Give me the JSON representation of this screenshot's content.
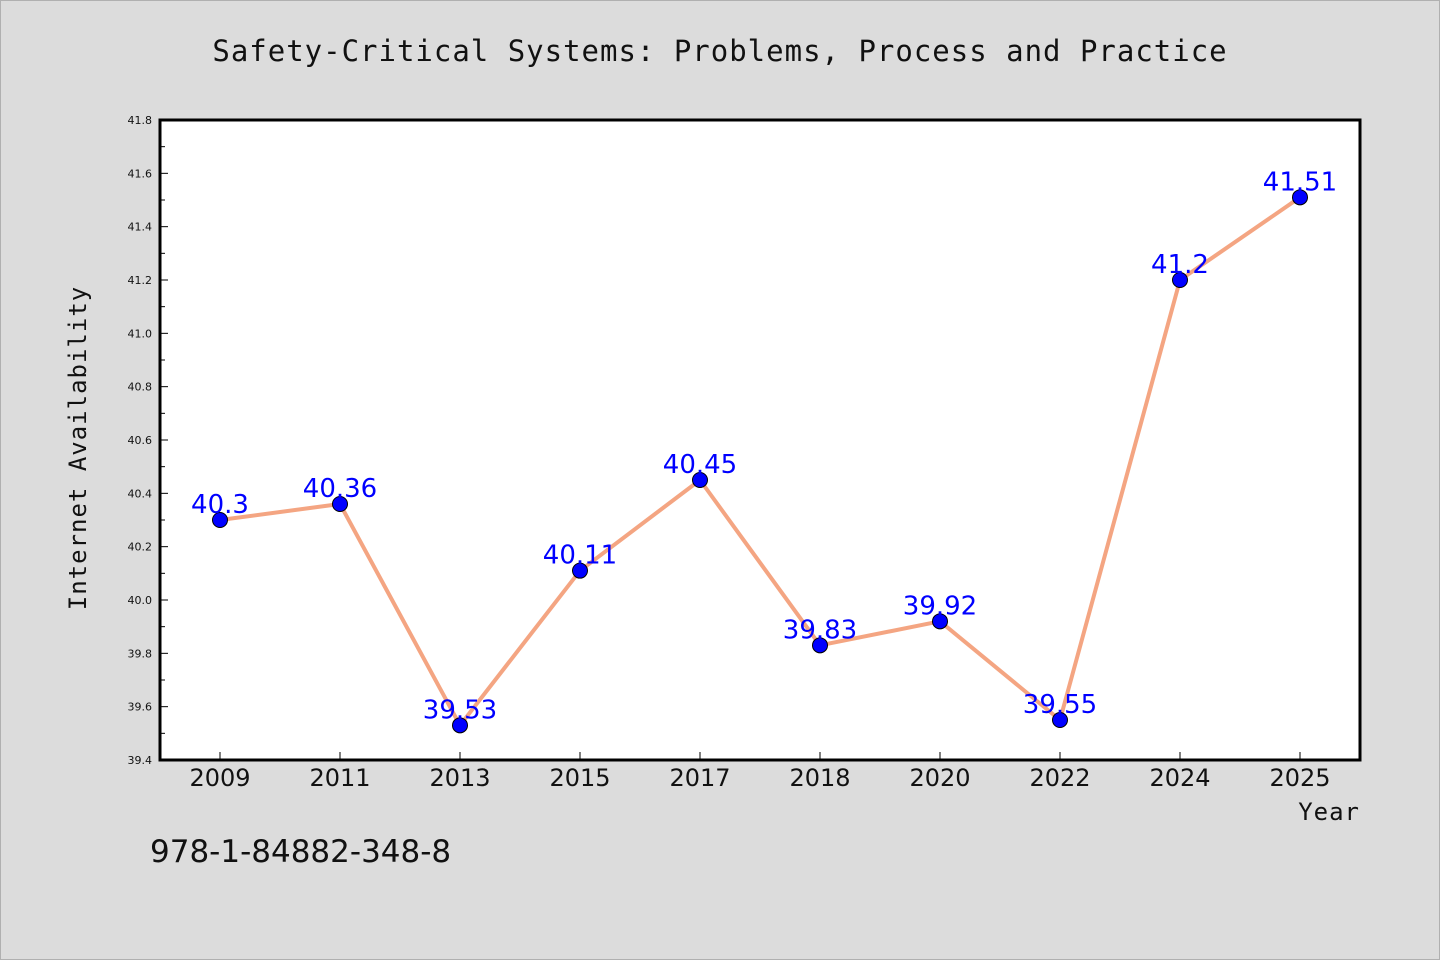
{
  "figure": {
    "isbn": "978-1-84882-348-8"
  },
  "chart_data": {
    "type": "line",
    "title": "Safety-Critical Systems: Problems, Process and Practice",
    "xlabel": "Year",
    "ylabel": "Internet Availability",
    "categories": [
      "2009",
      "2011",
      "2013",
      "2015",
      "2017",
      "2018",
      "2020",
      "2022",
      "2024",
      "2025"
    ],
    "series": [
      {
        "values": [
          40.3,
          40.36,
          39.53,
          40.11,
          40.45,
          39.83,
          39.92,
          39.55,
          41.2,
          41.51
        ],
        "data_labels": [
          "40.3",
          "40.36",
          "39.53",
          "40.11",
          "40.45",
          "39.83",
          "39.92",
          "39.55",
          "41.2",
          "41.51"
        ]
      }
    ],
    "ylim": [
      39.4,
      41.8
    ],
    "yticks": [
      "39.4",
      "39.6",
      "39.8",
      "40.0",
      "40.2",
      "40.4",
      "40.6",
      "40.8",
      "41.0",
      "41.2",
      "41.4",
      "41.6",
      "41.8"
    ],
    "grid": false,
    "legend": "none",
    "colors": {
      "line": "#f4a582",
      "marker": "#0000ff",
      "label": "#0000ff",
      "plot_bg": "#ffffff",
      "figure_bg": "#dcdcdc"
    }
  }
}
